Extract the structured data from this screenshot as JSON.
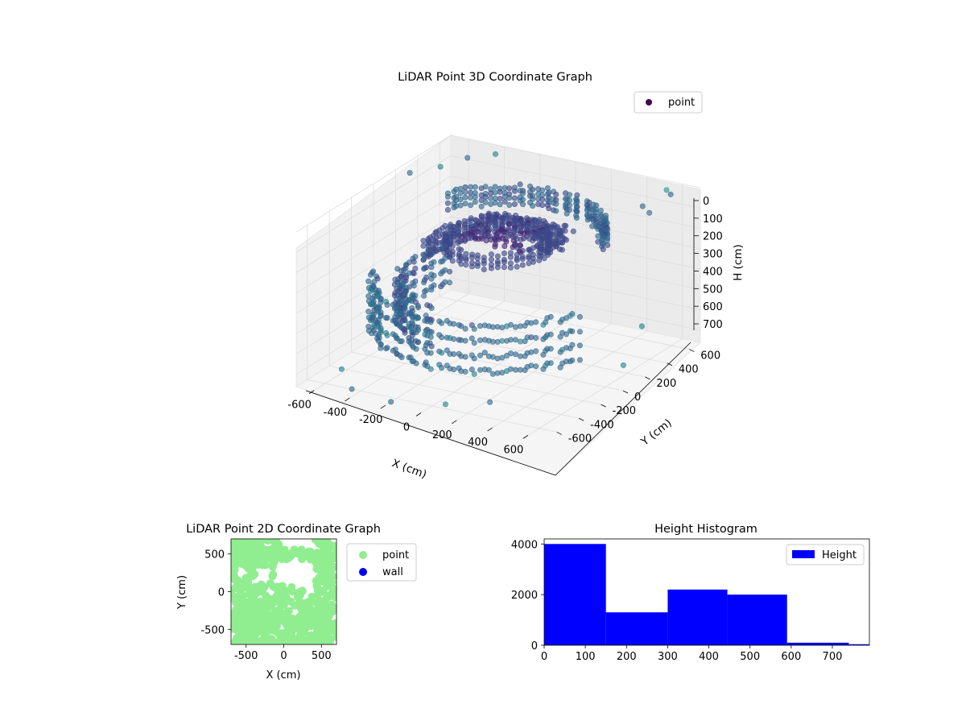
{
  "figure": {
    "background": "#ffffff"
  },
  "chart_data": [
    {
      "type": "scatter",
      "projection": "3d",
      "title": "LiDAR Point 3D Coordinate Graph",
      "xlabel": "X (cm)",
      "ylabel": "Y (cm)",
      "zlabel": "H (cm)",
      "xlim": [
        -700,
        700
      ],
      "ylim": [
        -700,
        700
      ],
      "zlim": [
        0,
        760
      ],
      "z_axis_inverted": true,
      "x_ticks": [
        "-600",
        "-400",
        "-200",
        "0",
        "200",
        "400",
        "600"
      ],
      "y_ticks": [
        "-600",
        "-400",
        "-200",
        "0",
        "200",
        "400",
        "600"
      ],
      "z_ticks": [
        "0",
        "100",
        "200",
        "300",
        "400",
        "500",
        "600",
        "700"
      ],
      "grid": true,
      "legend": {
        "placement": "top-right",
        "entries": [
          "point"
        ]
      },
      "colormap": "viridis",
      "series": [
        {
          "name": "point",
          "color": "#440154",
          "rings": [
            {
              "radius": 600,
              "h": 450,
              "start_deg": 200,
              "end_deg": 340,
              "height_span": 220,
              "count": 70
            },
            {
              "radius": 480,
              "h": 430,
              "start_deg": 150,
              "end_deg": 260,
              "height_span": 180,
              "count": 45
            },
            {
              "radius": 500,
              "h": 120,
              "start_deg": 20,
              "end_deg": 150,
              "height_span": 80,
              "count": 50
            },
            {
              "radius": 350,
              "h": 220,
              "start_deg": 60,
              "end_deg": 200,
              "height_span": 90,
              "count": 40
            },
            {
              "radius": 250,
              "h": 160,
              "start_deg": 0,
              "end_deg": 360,
              "height_span": 60,
              "count": 50
            }
          ],
          "blob": {
            "x_range": [
              -200,
              300
            ],
            "y_range": [
              -100,
              250
            ],
            "h": 130,
            "count": 150
          },
          "scattered": [
            {
              "x": -620,
              "y": 200,
              "h": 0
            },
            {
              "x": -560,
              "y": 380,
              "h": 20
            },
            {
              "x": -520,
              "y": 560,
              "h": 30
            },
            {
              "x": -400,
              "y": 620,
              "h": 10
            },
            {
              "x": 560,
              "y": 620,
              "h": 10
            },
            {
              "x": 620,
              "y": 560,
              "h": 0
            },
            {
              "x": 600,
              "y": 400,
              "h": 40
            },
            {
              "x": 500,
              "y": 500,
              "h": 60
            },
            {
              "x": -600,
              "y": -450,
              "h": 740
            },
            {
              "x": -450,
              "y": -600,
              "h": 760
            },
            {
              "x": -200,
              "y": -650,
              "h": 760
            },
            {
              "x": 100,
              "y": -640,
              "h": 720
            },
            {
              "x": 300,
              "y": -560,
              "h": 700
            },
            {
              "x": 620,
              "y": 300,
              "h": 560
            },
            {
              "x": 640,
              "y": 100,
              "h": 680
            }
          ]
        }
      ]
    },
    {
      "type": "scatter",
      "title": "LiDAR Point 2D Coordinate Graph",
      "xlabel": "X (cm)",
      "ylabel": "Y (cm)",
      "xlim": [
        -700,
        700
      ],
      "ylim": [
        -700,
        700
      ],
      "x_ticks": [
        -500,
        0,
        500
      ],
      "y_ticks": [
        -500,
        0,
        500
      ],
      "legend": {
        "placement": "outside-right",
        "entries": [
          "point",
          "wall"
        ]
      },
      "series": [
        {
          "name": "point",
          "color": "#90ee90"
        },
        {
          "name": "wall",
          "color": "#0000ff"
        }
      ]
    },
    {
      "type": "bar",
      "title": "Height Histogram",
      "bin_edges": [
        0,
        150,
        300,
        445,
        590,
        740,
        790
      ],
      "values": [
        4000,
        1300,
        2200,
        2000,
        100,
        40
      ],
      "xlim": [
        0,
        790
      ],
      "ylim": [
        0,
        4200
      ],
      "x_ticks": [
        0,
        100,
        200,
        300,
        400,
        500,
        600,
        700
      ],
      "y_ticks": [
        0,
        2000,
        4000
      ],
      "legend": {
        "placement": "top-right",
        "entries": [
          "Height"
        ]
      },
      "series": [
        {
          "name": "Height",
          "color": "#0000ff"
        }
      ]
    }
  ]
}
